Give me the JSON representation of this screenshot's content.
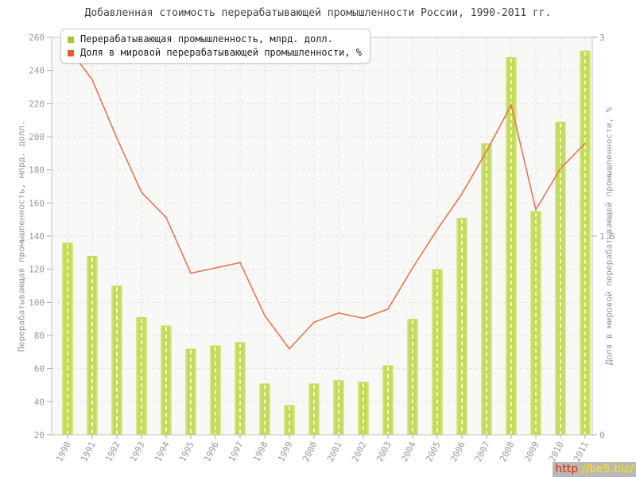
{
  "title": "Добавленная стоимость перерабатывающей промышленности России, 1990-2011 гг.",
  "legend": {
    "items": [
      {
        "label": "Перерабатывающая промышленность, млрд. долл.",
        "color": "#aac832"
      },
      {
        "label": "Доля в мировой перерабатывающей промышленности, %",
        "color": "#e06030"
      }
    ]
  },
  "watermark": {
    "prefix": "http",
    "rest": "://be5.biz/"
  },
  "colors": {
    "bar_fill": "#c4db58",
    "bar_edge": "#dcea9c",
    "line": "#e8764f",
    "plot_background": "#f8f8f7",
    "grid": "#e3e3e3",
    "axis_frame": "#c6c6c6",
    "tick_text": "#999999",
    "title_text": "#424242",
    "watermark_bg": "#b9b9b9",
    "watermark_http": "#e02800",
    "watermark_rest": "#ffe400"
  },
  "chart_data": {
    "type": "bar",
    "title": "Добавленная стоимость перерабатывающей промышленности России, 1990-2011 гг.",
    "categories": [
      "1990",
      "1991",
      "1992",
      "1993",
      "1994",
      "1995",
      "1996",
      "1997",
      "1998",
      "1999",
      "2000",
      "2001",
      "2002",
      "2003",
      "2004",
      "2005",
      "2006",
      "2007",
      "2008",
      "2009",
      "2010",
      "2011"
    ],
    "series": [
      {
        "name": "Перерабатывающая промышленность, млрд. долл.",
        "type": "bar",
        "axis": "left",
        "color": "#c4db58",
        "values": [
          136,
          128,
          110,
          91,
          86,
          72,
          74,
          76,
          51,
          38,
          51,
          53,
          52,
          62,
          90,
          120,
          151,
          196,
          248,
          155,
          209,
          252
        ]
      },
      {
        "name": "Доля в мировой перерабатывающей промышленности, %",
        "type": "line",
        "axis": "right",
        "color": "#e8764f",
        "values": [
          2.93,
          2.68,
          2.24,
          1.83,
          1.64,
          1.22,
          1.26,
          1.3,
          0.9,
          0.65,
          0.85,
          0.92,
          0.88,
          0.95,
          1.26,
          1.55,
          1.82,
          2.14,
          2.49,
          1.7,
          2.01,
          2.2
        ]
      }
    ],
    "left_axis": {
      "label": "Перерабатывающая промышленность, млрд. долл.",
      "min": 20,
      "max": 260,
      "step": 20
    },
    "right_axis": {
      "label": "Доля в мировой перерабатывающей промышленности, %",
      "min": 0,
      "max": 3,
      "ticks": [
        0,
        1.5,
        3
      ],
      "tick_labels": [
        "0",
        "1.5",
        "3"
      ]
    },
    "grid": true,
    "legend_position": "top-left"
  }
}
